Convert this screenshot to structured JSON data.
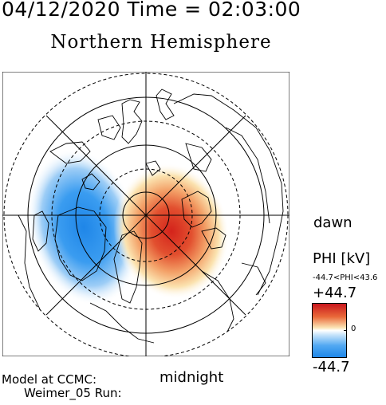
{
  "header": {
    "datetime": "04/12/2020 Time = 02:03:00",
    "title": "Northern Hemisphere"
  },
  "map": {
    "labels": {
      "dawn": "dawn",
      "midnight": "midnight"
    },
    "colors": {
      "positive": "#d72a1e",
      "negative": "#2b8ae6",
      "neutral": "#ffffff",
      "coastline": "#000000"
    }
  },
  "colorbar": {
    "title": "PHI [kV]",
    "range_text": "-44.7<PHI<43.6",
    "max_label": "+44.7",
    "zero_label": "0",
    "min_label": "-44.7",
    "max_value": 44.7,
    "min_value": -44.7
  },
  "footer": {
    "model_line1": "Model at CCMC:",
    "model_line2": "Weimer_05 Run:"
  }
}
